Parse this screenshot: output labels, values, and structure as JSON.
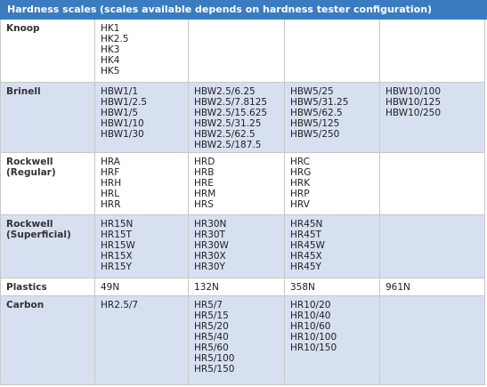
{
  "header": {
    "title": "Hardness scales",
    "note": "(scales available depends on hardness tester configuration)"
  },
  "table": {
    "rows": [
      {
        "label": [
          "Knoop"
        ],
        "cells": [
          [
            "HK1",
            "HK2.5",
            "HK3",
            "HK4",
            "HK5"
          ],
          [],
          [],
          []
        ]
      },
      {
        "label": [
          "Brinell"
        ],
        "cells": [
          [
            "HBW1/1",
            "HBW1/2.5",
            "HBW1/5",
            "HBW1/10",
            "HBW1/30"
          ],
          [
            "HBW2.5/6.25",
            "HBW2.5/7.8125",
            "HBW2.5/15.625",
            "HBW2.5/31.25",
            "HBW2.5/62.5",
            "HBW2.5/187.5"
          ],
          [
            "HBW5/25",
            "HBW5/31.25",
            "HBW5/62.5",
            "HBW5/125",
            "HBW5/250"
          ],
          [
            "HBW10/100",
            "HBW10/125",
            "HBW10/250"
          ]
        ]
      },
      {
        "label": [
          "Rockwell",
          "(Regular)"
        ],
        "cells": [
          [
            "HRA",
            "HRF",
            "HRH",
            "HRL",
            "HRR"
          ],
          [
            "HRD",
            "HRB",
            "HRE",
            "HRM",
            "HRS"
          ],
          [
            "HRC",
            "HRG",
            "HRK",
            "HRP",
            "HRV"
          ],
          []
        ]
      },
      {
        "label": [
          "Rockwell",
          "(Superficial)"
        ],
        "cells": [
          [
            "HR15N",
            "HR15T",
            "HR15W",
            "HR15X",
            "HR15Y"
          ],
          [
            "HR30N",
            "HR30T",
            "HR30W",
            "HR30X",
            "HR30Y"
          ],
          [
            "HR45N",
            "HR45T",
            "HR45W",
            "HR45X",
            "HR45Y"
          ],
          []
        ]
      },
      {
        "label": [
          "Plastics"
        ],
        "cells": [
          [
            "49N"
          ],
          [
            "132N"
          ],
          [
            "358N"
          ],
          [
            "961N"
          ]
        ]
      },
      {
        "label": [
          "Carbon"
        ],
        "cells": [
          [
            "HR2.5/7"
          ],
          [
            "HR5/7",
            "HR5/15",
            "HR5/20",
            "HR5/40",
            "HR5/60",
            "HR5/100",
            "HR5/150"
          ],
          [
            "HR10/20",
            "HR10/40",
            "HR10/60",
            "HR10/100",
            "HR10/150"
          ],
          []
        ]
      }
    ]
  }
}
